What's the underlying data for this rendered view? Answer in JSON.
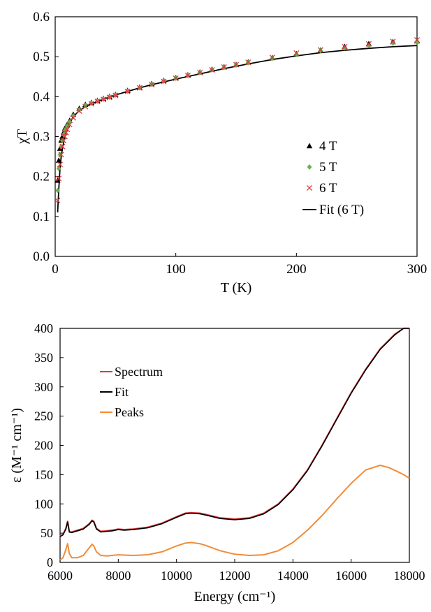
{
  "chart_data": [
    {
      "type": "scatter",
      "xlabel": "T (K)",
      "ylabel": "χT",
      "xlim": [
        0,
        300
      ],
      "ylim": [
        0.0,
        0.6
      ],
      "xticks": [
        "0",
        "100",
        "200",
        "300"
      ],
      "yticks": [
        "0.0",
        "0.1",
        "0.2",
        "0.3",
        "0.4",
        "0.5",
        "0.6"
      ],
      "legend_position": "right-middle",
      "colors": {
        "s4": "#000000",
        "s5": "#6ab04c",
        "s6": "#e0383e",
        "fit": "#000000"
      },
      "series": [
        {
          "name": "4 T",
          "marker": "triangle",
          "x": [
            2,
            3,
            4,
            5,
            6,
            7,
            8,
            9,
            10,
            12,
            15,
            20,
            25,
            30,
            35,
            40,
            45,
            50,
            60,
            70,
            80,
            90,
            100,
            110,
            120,
            130,
            140,
            150,
            160,
            180,
            200,
            220,
            240,
            260,
            280,
            300
          ],
          "y": [
            0.19,
            0.24,
            0.27,
            0.29,
            0.3,
            0.31,
            0.32,
            0.325,
            0.33,
            0.34,
            0.355,
            0.37,
            0.38,
            0.385,
            0.39,
            0.395,
            0.4,
            0.405,
            0.415,
            0.423,
            0.432,
            0.44,
            0.447,
            0.454,
            0.461,
            0.468,
            0.474,
            0.48,
            0.486,
            0.497,
            0.507,
            0.516,
            0.525,
            0.532,
            0.537,
            0.539
          ]
        },
        {
          "name": "5 T",
          "marker": "diamond",
          "x": [
            2,
            3,
            4,
            5,
            6,
            7,
            8,
            9,
            10,
            12,
            15,
            20,
            25,
            30,
            35,
            40,
            45,
            50,
            60,
            70,
            80,
            90,
            100,
            110,
            120,
            130,
            140,
            150,
            160,
            180,
            200,
            220,
            240,
            260,
            280,
            300
          ],
          "y": [
            0.165,
            0.22,
            0.255,
            0.275,
            0.29,
            0.305,
            0.315,
            0.32,
            0.327,
            0.337,
            0.352,
            0.367,
            0.378,
            0.384,
            0.389,
            0.394,
            0.399,
            0.404,
            0.414,
            0.422,
            0.431,
            0.439,
            0.446,
            0.453,
            0.46,
            0.467,
            0.473,
            0.479,
            0.485,
            0.496,
            0.506,
            0.515,
            0.522,
            0.528,
            0.534,
            0.535
          ]
        },
        {
          "name": "6 T",
          "marker": "x",
          "x": [
            2,
            3,
            4,
            5,
            6,
            7,
            8,
            9,
            10,
            12,
            15,
            20,
            25,
            30,
            35,
            40,
            45,
            50,
            60,
            70,
            80,
            90,
            100,
            110,
            120,
            130,
            140,
            150,
            160,
            180,
            200,
            220,
            240,
            260,
            280,
            300
          ],
          "y": [
            0.14,
            0.195,
            0.23,
            0.255,
            0.275,
            0.29,
            0.3,
            0.31,
            0.318,
            0.33,
            0.347,
            0.364,
            0.375,
            0.382,
            0.388,
            0.393,
            0.398,
            0.403,
            0.413,
            0.422,
            0.43,
            0.438,
            0.446,
            0.453,
            0.46,
            0.467,
            0.474,
            0.48,
            0.486,
            0.498,
            0.509,
            0.517,
            0.525,
            0.532,
            0.538,
            0.542
          ]
        },
        {
          "name": "Fit (6 T)",
          "marker": "line",
          "x": [
            2,
            3,
            4,
            5,
            6,
            8,
            10,
            12,
            15,
            20,
            25,
            30,
            40,
            50,
            60,
            70,
            80,
            90,
            100,
            120,
            140,
            160,
            180,
            200,
            220,
            240,
            260,
            280,
            300
          ],
          "y": [
            0.11,
            0.17,
            0.22,
            0.25,
            0.27,
            0.3,
            0.318,
            0.333,
            0.35,
            0.365,
            0.375,
            0.382,
            0.394,
            0.404,
            0.413,
            0.422,
            0.43,
            0.437,
            0.444,
            0.457,
            0.47,
            0.482,
            0.493,
            0.502,
            0.51,
            0.516,
            0.521,
            0.525,
            0.528
          ]
        }
      ]
    },
    {
      "type": "line",
      "xlabel": "Energy (cm⁻¹)",
      "ylabel": "ε (M⁻¹ cm⁻¹)",
      "xlim": [
        6000,
        18000
      ],
      "ylim": [
        0,
        400
      ],
      "xticks": [
        "6000",
        "8000",
        "10000",
        "12000",
        "14000",
        "16000",
        "18000"
      ],
      "yticks": [
        "0",
        "50",
        "100",
        "150",
        "200",
        "250",
        "300",
        "350",
        "400"
      ],
      "legend_position": "top-left",
      "colors": {
        "spectrum": "#e0383e",
        "fit": "#000000",
        "peaks": "#f28c38"
      },
      "series": [
        {
          "name": "Spectrum",
          "x": [
            6000,
            6100,
            6200,
            6260,
            6320,
            6400,
            6600,
            6800,
            7000,
            7100,
            7160,
            7250,
            7400,
            7600,
            7800,
            8000,
            8200,
            8500,
            9000,
            9500,
            10000,
            10300,
            10500,
            10800,
            11000,
            11500,
            12000,
            12500,
            13000,
            13500,
            14000,
            14500,
            15000,
            15500,
            16000,
            16500,
            17000,
            17500,
            17800,
            18000
          ],
          "y": [
            45,
            48,
            58,
            70,
            52,
            52,
            55,
            58,
            66,
            72,
            70,
            58,
            53,
            54,
            55,
            57,
            56,
            57,
            60,
            67,
            78,
            84,
            85,
            84,
            82,
            76,
            74,
            76,
            84,
            100,
            125,
            158,
            200,
            245,
            290,
            330,
            365,
            390,
            402,
            410
          ]
        },
        {
          "name": "Fit",
          "x": [
            6000,
            6100,
            6200,
            6260,
            6320,
            6400,
            6600,
            6800,
            7000,
            7100,
            7160,
            7250,
            7400,
            7600,
            7800,
            8000,
            8200,
            8500,
            9000,
            9500,
            10000,
            10300,
            10500,
            10800,
            11000,
            11500,
            12000,
            12500,
            13000,
            13500,
            14000,
            14500,
            15000,
            15500,
            16000,
            16500,
            17000,
            17500,
            17800,
            18000
          ],
          "y": [
            44,
            47,
            57,
            69,
            52,
            51,
            54,
            57,
            65,
            71,
            69,
            57,
            52,
            53,
            54,
            56,
            55,
            56,
            59,
            66,
            77,
            83,
            84,
            83,
            81,
            75,
            73,
            75,
            83,
            99,
            124,
            157,
            199,
            244,
            289,
            329,
            364,
            389,
            401,
            409
          ]
        },
        {
          "name": "Peaks",
          "x": [
            6000,
            6100,
            6200,
            6260,
            6320,
            6400,
            6600,
            6800,
            7000,
            7100,
            7160,
            7250,
            7400,
            7600,
            7800,
            8000,
            8500,
            9000,
            9500,
            10000,
            10300,
            10500,
            10800,
            11000,
            11500,
            12000,
            12500,
            13000,
            13500,
            14000,
            14500,
            15000,
            15500,
            16000,
            16500,
            17000,
            17300,
            17600,
            17800,
            18000
          ],
          "y": [
            4,
            8,
            22,
            32,
            15,
            8,
            8,
            12,
            25,
            31,
            28,
            18,
            12,
            11,
            12,
            13,
            12,
            13,
            18,
            28,
            33,
            34,
            32,
            29,
            20,
            14,
            12,
            13,
            20,
            34,
            55,
            80,
            108,
            135,
            158,
            166,
            162,
            155,
            150,
            144
          ]
        }
      ]
    }
  ]
}
